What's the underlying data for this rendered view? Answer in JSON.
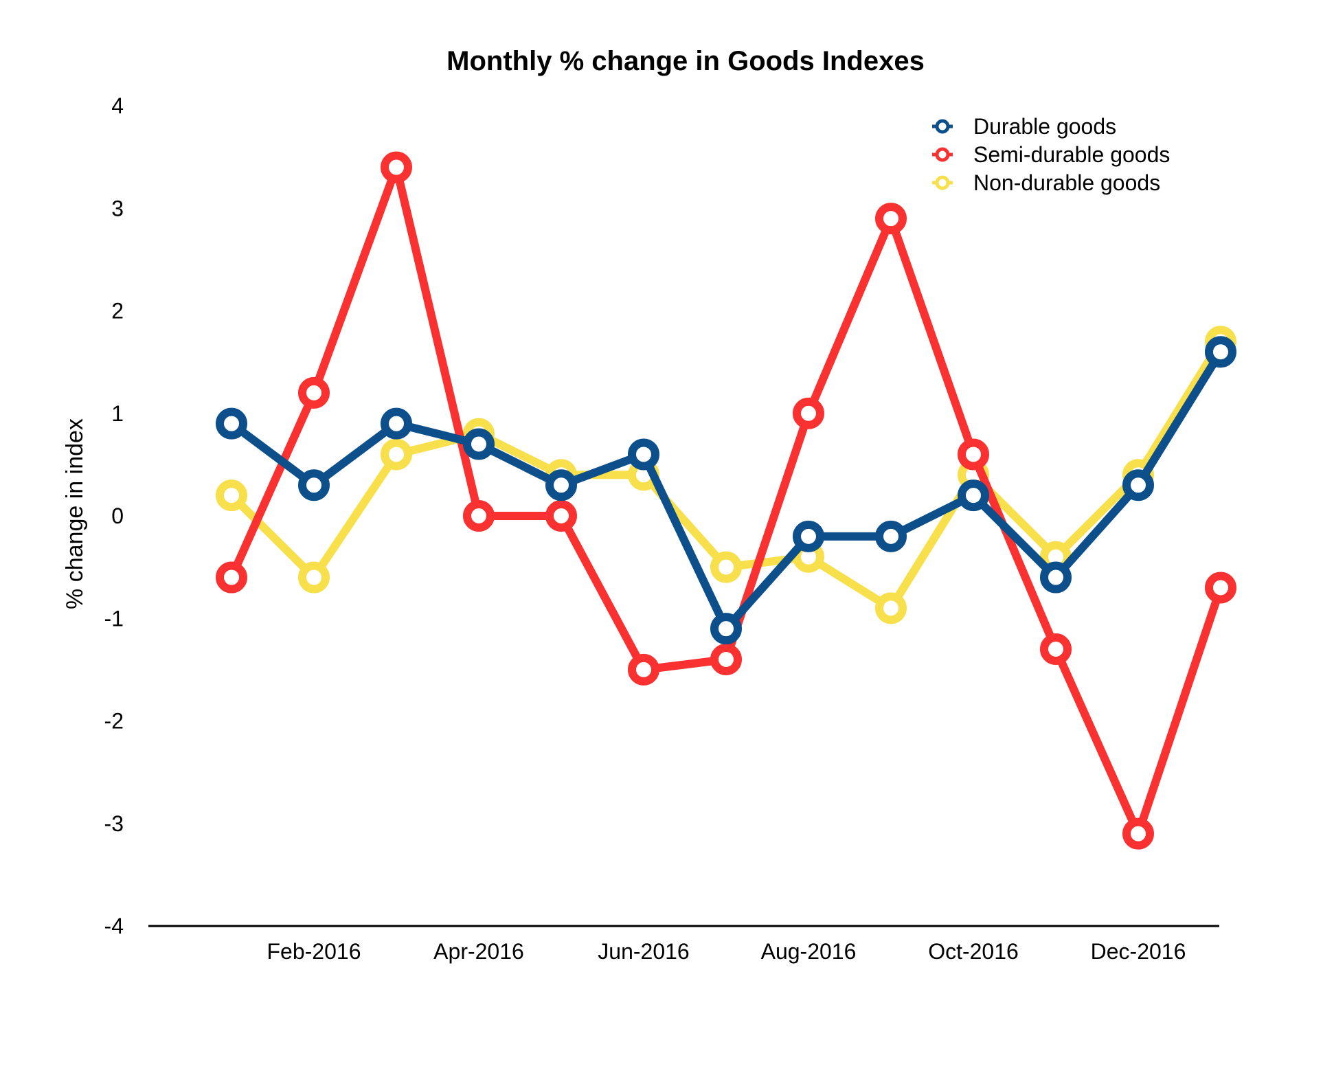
{
  "chart_data": {
    "type": "line",
    "title": "Monthly % change in Goods Indexes",
    "xlabel": "",
    "ylabel": "% change in index",
    "ylim": [
      -4,
      4
    ],
    "yticks": [
      "4",
      "3",
      "2",
      "1",
      "0",
      "-1",
      "-2",
      "-3",
      "-4"
    ],
    "x": [
      "Jan-2016",
      "Feb-2016",
      "Mar-2016",
      "Apr-2016",
      "May-2016",
      "Jun-2016",
      "Jul-2016",
      "Aug-2016",
      "Sep-2016",
      "Oct-2016",
      "Nov-2016",
      "Dec-2016",
      "Jan-2017"
    ],
    "xtick_labels": [
      "Feb-2016",
      "Apr-2016",
      "Jun-2016",
      "Aug-2016",
      "Oct-2016",
      "Dec-2016"
    ],
    "grid": false,
    "legend_position": "top-right",
    "series": [
      {
        "name": "Durable goods",
        "color": "#0d4f8b",
        "values": [
          0.9,
          0.3,
          0.9,
          0.7,
          0.3,
          0.6,
          -1.1,
          -0.2,
          -0.2,
          0.2,
          -0.6,
          0.3,
          1.6
        ]
      },
      {
        "name": "Semi-durable goods",
        "color": "#f93131",
        "values": [
          -0.6,
          1.2,
          3.4,
          0.0,
          0.0,
          -1.5,
          -1.4,
          1.0,
          2.9,
          0.6,
          -1.3,
          -3.1,
          -0.7
        ]
      },
      {
        "name": "Non-durable goods",
        "color": "#f7e04b",
        "values": [
          0.2,
          -0.6,
          0.6,
          0.8,
          0.4,
          0.4,
          -0.5,
          -0.4,
          -0.9,
          0.4,
          -0.4,
          0.4,
          1.7
        ]
      }
    ],
    "draw_order": [
      2,
      1,
      0
    ]
  }
}
